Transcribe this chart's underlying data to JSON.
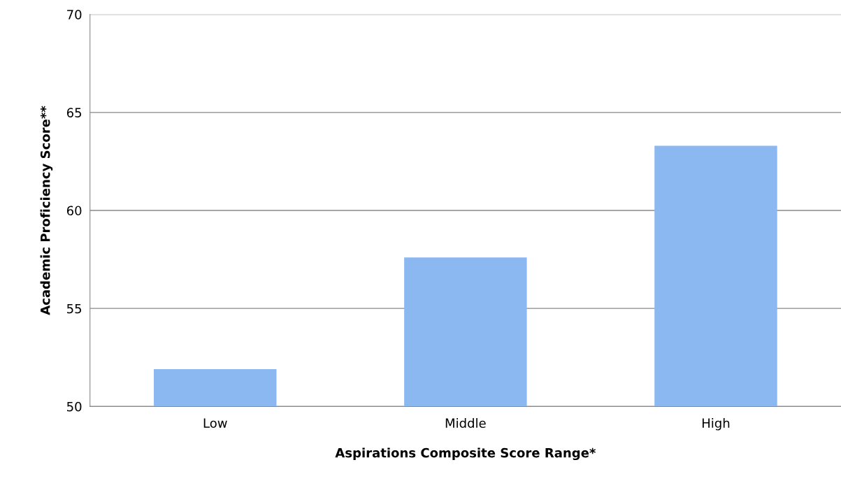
{
  "chart_data": {
    "type": "bar",
    "xlabel": "Aspirations Composite Score Range*",
    "ylabel": "Academic Proficiency Score**",
    "categories": [
      "Low",
      "Middle",
      "High"
    ],
    "values": [
      51.9,
      57.6,
      63.3
    ],
    "color": "#8bb8f0",
    "ylim": [
      50,
      70
    ],
    "yticks": [
      50,
      55,
      60,
      65,
      70
    ],
    "grid": "y"
  }
}
